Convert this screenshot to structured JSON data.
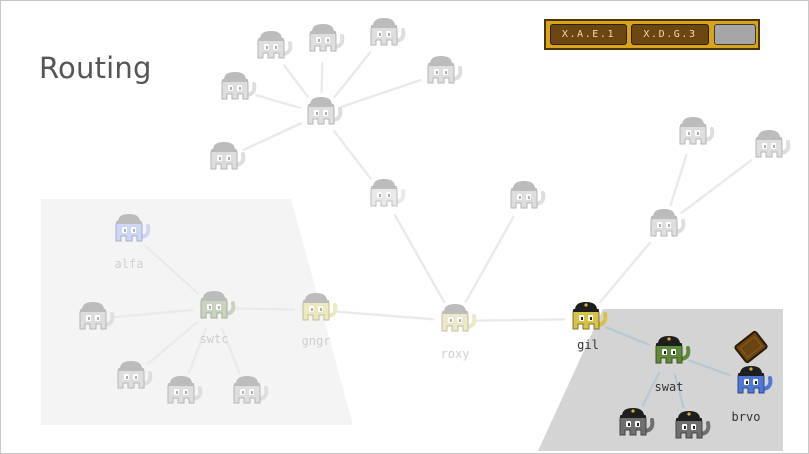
{
  "page": {
    "title": "Routing"
  },
  "address_bar": {
    "chips": [
      {
        "label": "X.A.E.1"
      },
      {
        "label": "X.D.G.3"
      }
    ]
  },
  "diagram": {
    "colors": {
      "faded_body": "#dedede",
      "faded_cap": "#bcbcbc",
      "faded_edge": "#eaeaea",
      "active_edge": "#b4c9d3",
      "region_left": "#f4f4f4",
      "region_right": "#d4d4d4",
      "label_faded": "#cfcfcf",
      "label_active": "#333333"
    },
    "nodes": [
      {
        "id": "top-1",
        "label": "",
        "color": "#dedede",
        "faded": true
      },
      {
        "id": "top-2",
        "label": "",
        "color": "#dedede",
        "faded": true
      },
      {
        "id": "top-3",
        "label": "",
        "color": "#dedede",
        "faded": true
      },
      {
        "id": "top-4",
        "label": "",
        "color": "#dedede",
        "faded": true
      },
      {
        "id": "top-hub",
        "label": "",
        "color": "#dedede",
        "faded": true
      },
      {
        "id": "top-5",
        "label": "",
        "color": "#dedede",
        "faded": true
      },
      {
        "id": "top-6",
        "label": "",
        "color": "#dedede",
        "faded": true
      },
      {
        "id": "mid",
        "label": "",
        "color": "#e9e9e9",
        "faded": true
      },
      {
        "id": "right-1",
        "label": "",
        "color": "#dedede",
        "faded": true
      },
      {
        "id": "ne-1",
        "label": "",
        "color": "#dedede",
        "faded": true
      },
      {
        "id": "ne-2",
        "label": "",
        "color": "#dedede",
        "faded": true
      },
      {
        "id": "ne-hub",
        "label": "",
        "color": "#dedede",
        "faded": true
      },
      {
        "id": "alfa",
        "label": "alfa",
        "color": "#cdd6f4",
        "faded": true
      },
      {
        "id": "swtc",
        "label": "swtc",
        "color": "#c9d4c0",
        "faded": true
      },
      {
        "id": "gngr",
        "label": "gngr",
        "color": "#ece8c0",
        "faded": true
      },
      {
        "id": "roxy",
        "label": "roxy",
        "color": "#ece8c8",
        "faded": true
      },
      {
        "id": "left-a",
        "label": "",
        "color": "#dedede",
        "faded": true
      },
      {
        "id": "left-b",
        "label": "",
        "color": "#dedede",
        "faded": true
      },
      {
        "id": "left-c",
        "label": "",
        "color": "#dedede",
        "faded": true
      },
      {
        "id": "left-d",
        "label": "",
        "color": "#dedede",
        "faded": true
      },
      {
        "id": "gil",
        "label": "gil",
        "color": "#d8c24a",
        "faded": false
      },
      {
        "id": "swat",
        "label": "swat",
        "color": "#5e8a3a",
        "faded": false
      },
      {
        "id": "brvo",
        "label": "brvo",
        "color": "#4f78d6",
        "faded": false
      },
      {
        "id": "bottom-a",
        "label": "",
        "color": "#6f6f6f",
        "faded": false
      },
      {
        "id": "bottom-b",
        "label": "",
        "color": "#6f6f6f",
        "faded": false
      }
    ],
    "edges": [
      [
        "top-1",
        "top-hub"
      ],
      [
        "top-2",
        "top-hub"
      ],
      [
        "top-3",
        "top-hub"
      ],
      [
        "top-4",
        "top-hub"
      ],
      [
        "top-5",
        "top-hub"
      ],
      [
        "top-6",
        "top-hub"
      ],
      [
        "top-hub",
        "mid"
      ],
      [
        "mid",
        "roxy"
      ],
      [
        "right-1",
        "roxy"
      ],
      [
        "gngr",
        "roxy"
      ],
      [
        "roxy",
        "gil"
      ],
      [
        "gil",
        "ne-hub"
      ],
      [
        "ne-hub",
        "ne-1"
      ],
      [
        "ne-hub",
        "ne-2"
      ],
      [
        "alfa",
        "swtc"
      ],
      [
        "swtc",
        "gngr"
      ],
      [
        "swtc",
        "left-a"
      ],
      [
        "swtc",
        "left-b"
      ],
      [
        "swtc",
        "left-c"
      ],
      [
        "swtc",
        "left-d"
      ],
      [
        "gil",
        "swat"
      ],
      [
        "swat",
        "brvo"
      ],
      [
        "swat",
        "bottom-a"
      ],
      [
        "swat",
        "bottom-b"
      ]
    ]
  }
}
